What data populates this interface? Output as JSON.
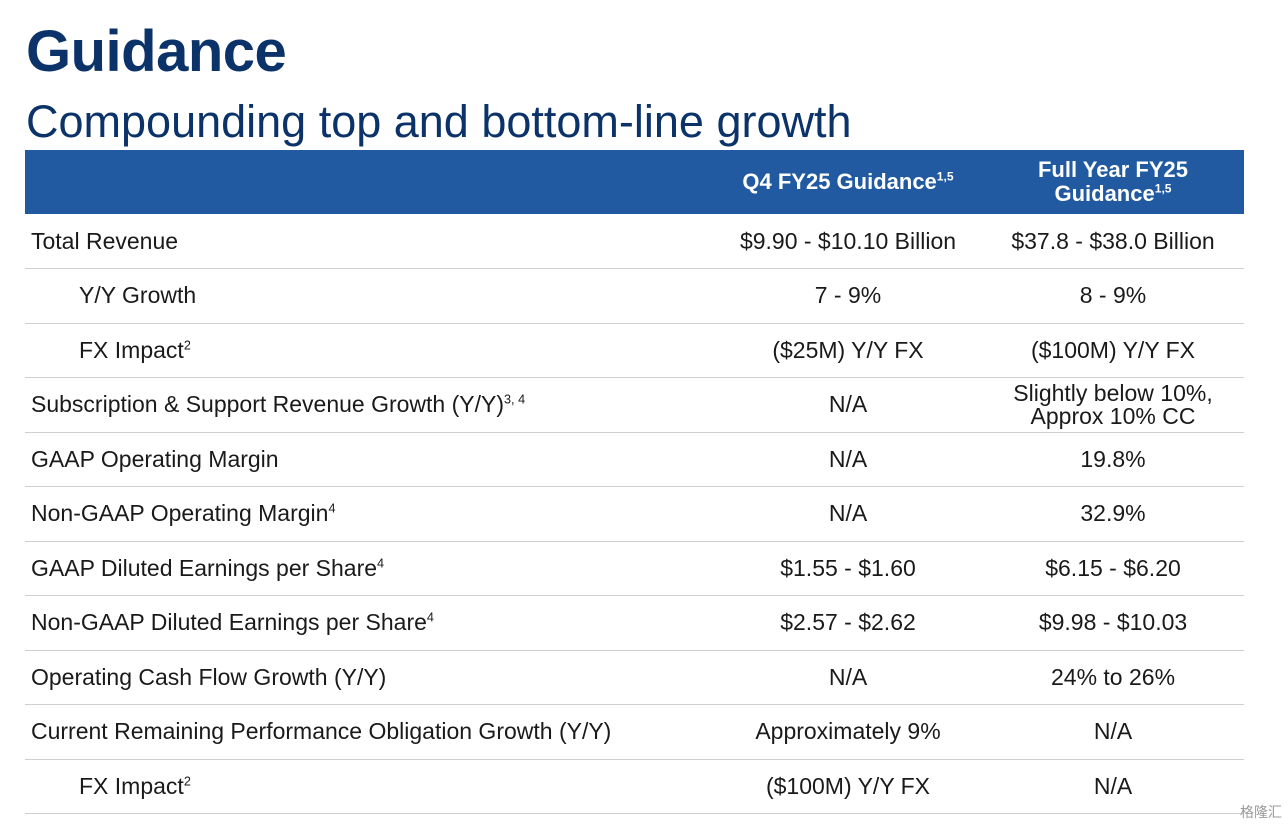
{
  "title": "Guidance",
  "subtitle": "Compounding top and bottom-line growth",
  "table": {
    "headers": [
      {
        "text": "",
        "sup": ""
      },
      {
        "text": "Q4 FY25 Guidance",
        "sup": "1,5"
      },
      {
        "text": "Full Year FY25 Guidance",
        "sup": "1,5"
      }
    ],
    "rows": [
      {
        "label": "Total Revenue",
        "sup": "",
        "indent": false,
        "q4": "$9.90 - $10.10 Billion",
        "fy": "$37.8 - $38.0 Billion"
      },
      {
        "label": "Y/Y Growth",
        "sup": "",
        "indent": true,
        "q4": "7 - 9%",
        "fy": "8 - 9%"
      },
      {
        "label": "FX Impact",
        "sup": "2",
        "indent": true,
        "q4": "($25M) Y/Y FX",
        "fy": "($100M) Y/Y FX"
      },
      {
        "label": "Subscription & Support Revenue Growth (Y/Y)",
        "sup": "3, 4",
        "indent": false,
        "q4": "N/A",
        "fy": "Slightly below 10%, Approx 10% CC"
      },
      {
        "label": "GAAP Operating Margin",
        "sup": "",
        "indent": false,
        "q4": "N/A",
        "fy": "19.8%"
      },
      {
        "label": "Non-GAAP Operating Margin",
        "sup": "4",
        "indent": false,
        "q4": "N/A",
        "fy": "32.9%"
      },
      {
        "label": "GAAP Diluted Earnings per Share",
        "sup": "4",
        "indent": false,
        "q4": "$1.55 - $1.60",
        "fy": "$6.15 - $6.20"
      },
      {
        "label": "Non-GAAP Diluted Earnings per Share",
        "sup": "4",
        "indent": false,
        "q4": "$2.57 - $2.62",
        "fy": "$9.98 - $10.03"
      },
      {
        "label": "Operating Cash Flow Growth (Y/Y)",
        "sup": "",
        "indent": false,
        "q4": "N/A",
        "fy": "24% to 26%"
      },
      {
        "label": "Current Remaining Performance Obligation Growth (Y/Y)",
        "sup": "",
        "indent": false,
        "q4": "Approximately 9%",
        "fy": "N/A"
      },
      {
        "label": "FX Impact",
        "sup": "2",
        "indent": true,
        "q4": "($100M) Y/Y FX",
        "fy": "N/A"
      }
    ]
  },
  "watermark": "格隆汇",
  "colors": {
    "title": "#0b3369",
    "header_bg": "#215aa1"
  }
}
